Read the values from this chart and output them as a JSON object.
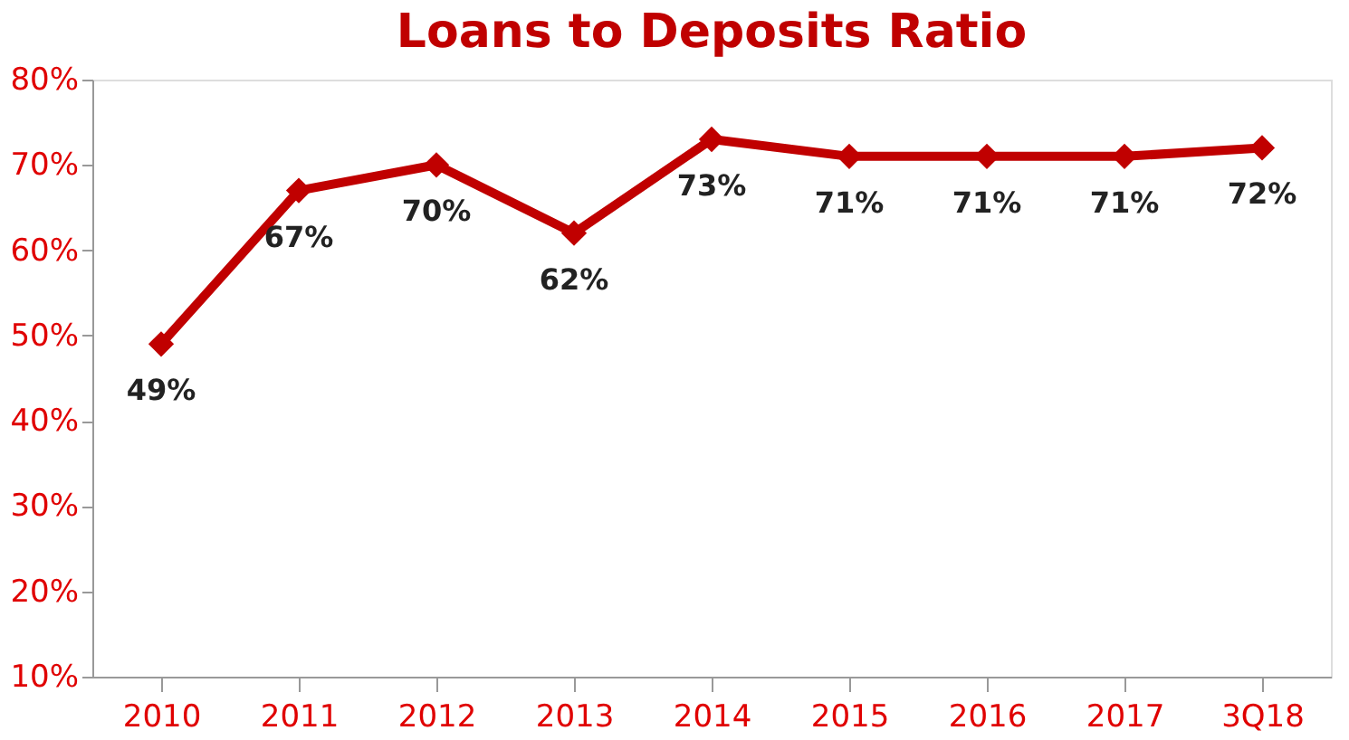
{
  "chart_data": {
    "type": "line",
    "title": "Loans to Deposits Ratio",
    "categories": [
      "2010",
      "2011",
      "2012",
      "2013",
      "2014",
      "2015",
      "2016",
      "2017",
      "3Q18"
    ],
    "series": [
      {
        "color": "#c00000",
        "values": [
          49,
          67,
          70,
          62,
          73,
          71,
          71,
          71,
          72
        ],
        "value_labels": [
          "49%",
          "67%",
          "70%",
          "62%",
          "73%",
          "71%",
          "71%",
          "71%",
          "72%"
        ]
      }
    ],
    "ylim": [
      10,
      80
    ],
    "yticks": [
      {
        "value": 10,
        "label": "10%"
      },
      {
        "value": 20,
        "label": "20%"
      },
      {
        "value": 30,
        "label": "30%"
      },
      {
        "value": 40,
        "label": "40%"
      },
      {
        "value": 50,
        "label": "50%"
      },
      {
        "value": 60,
        "label": "60%"
      },
      {
        "value": 70,
        "label": "70%"
      },
      {
        "value": 80,
        "label": "80%"
      }
    ],
    "marker": "diamond",
    "line_style": "solid",
    "grid": false
  }
}
